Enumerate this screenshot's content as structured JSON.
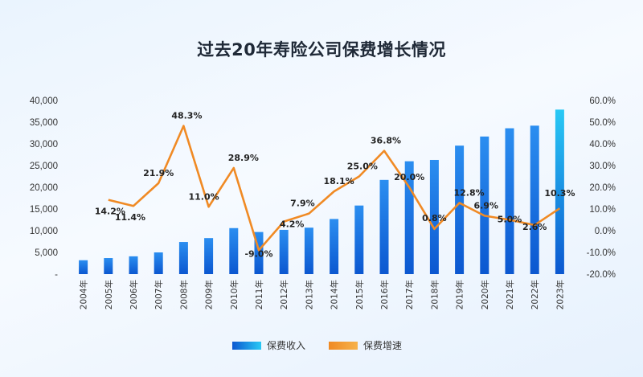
{
  "chart_data": {
    "type": "bar+line",
    "title": "过去20年寿险公司保费增长情况",
    "categories": [
      "2004年",
      "2005年",
      "2006年",
      "2007年",
      "2008年",
      "2009年",
      "2010年",
      "2011年",
      "2012年",
      "2013年",
      "2014年",
      "2015年",
      "2016年",
      "2017年",
      "2018年",
      "2019年",
      "2020年",
      "2021年",
      "2022年",
      "2023年"
    ],
    "series": [
      {
        "name": "保费收入",
        "type": "bar",
        "axis": "left",
        "values": [
          3200,
          3700,
          4100,
          5000,
          7400,
          8300,
          10600,
          9700,
          10200,
          10700,
          12700,
          15800,
          21700,
          26000,
          26300,
          29600,
          31700,
          33600,
          34200,
          37900
        ]
      },
      {
        "name": "保费增速",
        "type": "line",
        "axis": "right",
        "values": [
          null,
          14.2,
          11.4,
          21.9,
          48.3,
          11.0,
          28.9,
          -9.0,
          4.2,
          7.9,
          18.1,
          25.0,
          36.8,
          20.0,
          0.8,
          12.8,
          6.9,
          5.0,
          2.6,
          10.3
        ],
        "labels": [
          null,
          "14.2%",
          "11.4%",
          "21.9%",
          "48.3%",
          "11.0%",
          "28.9%",
          "-9.0%",
          "4.2%",
          "7.9%",
          "18.1%",
          "25.0%",
          "36.8%",
          "20.0%",
          "0.8%",
          "12.8%",
          "6.9%",
          "5.0%",
          "2.6%",
          "10.3%"
        ]
      }
    ],
    "y_left": {
      "min": 0,
      "max": 40000,
      "ticks": [
        0,
        5000,
        10000,
        15000,
        20000,
        25000,
        30000,
        35000,
        40000
      ],
      "tick_labels": [
        "-",
        "5,000",
        "10,000",
        "15,000",
        "20,000",
        "25,000",
        "30,000",
        "35,000",
        "40,000"
      ]
    },
    "y_right": {
      "min": -20,
      "max": 60,
      "ticks": [
        -20,
        -10,
        0,
        10,
        20,
        30,
        40,
        50,
        60
      ],
      "tick_labels": [
        "-20.0%",
        "-10.0%",
        "0.0%",
        "10.0%",
        "20.0%",
        "30.0%",
        "40.0%",
        "50.0%",
        "60.0%"
      ]
    },
    "grid": false,
    "legend_position": "bottom-center",
    "colors": {
      "bar_top": "#2b8ef0",
      "bar_bottom": "#0b57d0",
      "bar_last_top": "#29c9f5",
      "line": "#f08a24",
      "line_light": "#f6b24a"
    }
  }
}
